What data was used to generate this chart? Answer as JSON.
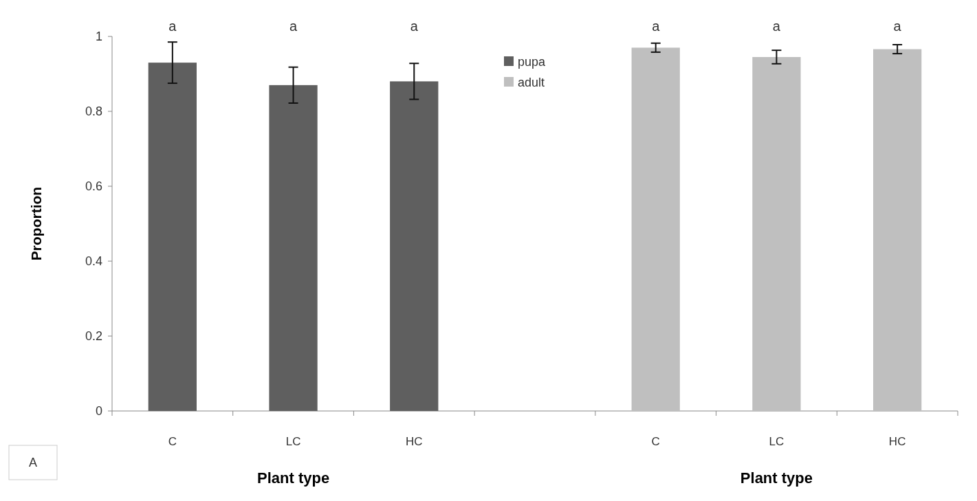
{
  "chart_data": {
    "type": "bar",
    "ylabel": "Proportion",
    "xlabel": "Plant type",
    "categories": [
      "C",
      "LC",
      "HC",
      null,
      "C",
      "LC",
      "HC"
    ],
    "series": [
      {
        "name": "pupa",
        "color": "#5f5f5f",
        "values": [
          0.93,
          0.87,
          0.88,
          null,
          null,
          null,
          null
        ],
        "errors": [
          0.055,
          0.048,
          0.048,
          null,
          null,
          null,
          null
        ]
      },
      {
        "name": "adult",
        "color": "#bfbfbf",
        "values": [
          null,
          null,
          null,
          null,
          0.97,
          0.945,
          0.966
        ],
        "errors": [
          null,
          null,
          null,
          null,
          0.012,
          0.018,
          0.012
        ]
      }
    ],
    "ylim": [
      0,
      1
    ],
    "yticks": [
      0,
      0.2,
      0.4,
      0.6,
      0.8,
      1
    ],
    "legend": "top",
    "grid": false,
    "annotations": [
      "a",
      "a",
      "a",
      "a",
      "a",
      "a",
      "Plant type",
      "A"
    ]
  }
}
